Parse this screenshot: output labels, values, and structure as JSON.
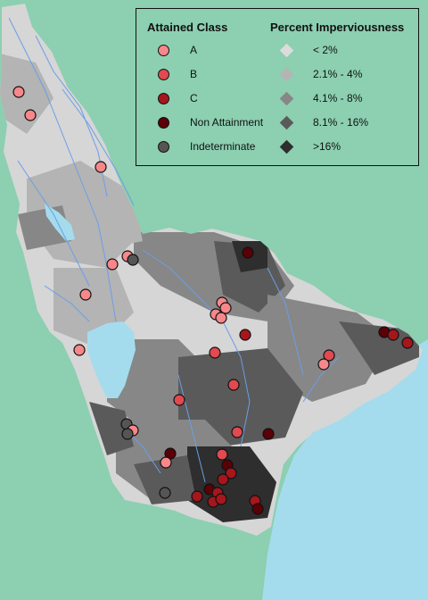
{
  "legend": {
    "attained_title": "Attained Class",
    "impervious_title": "Percent Imperviousness",
    "classes": [
      {
        "label": "A",
        "color": "#f7878a"
      },
      {
        "label": "B",
        "color": "#e04a50"
      },
      {
        "label": "C",
        "color": "#a6161c"
      },
      {
        "label": "Non Attainment",
        "color": "#5a0006"
      },
      {
        "label": "Indeterminate",
        "color": "#555555"
      }
    ],
    "imperviousness": [
      {
        "label": "< 2%",
        "color": "#dcdcdc"
      },
      {
        "label": "2.1% - 4%",
        "color": "#b4b4b4"
      },
      {
        "label": "4.1% - 8%",
        "color": "#878787"
      },
      {
        "label": "8.1% - 16%",
        "color": "#5a5a5a"
      },
      {
        "label": ">16%",
        "color": "#2e2e2e"
      }
    ]
  },
  "colors": {
    "background": "#8ccfb1",
    "water": "#a4dcee",
    "streams": "#6a9ee6"
  }
}
